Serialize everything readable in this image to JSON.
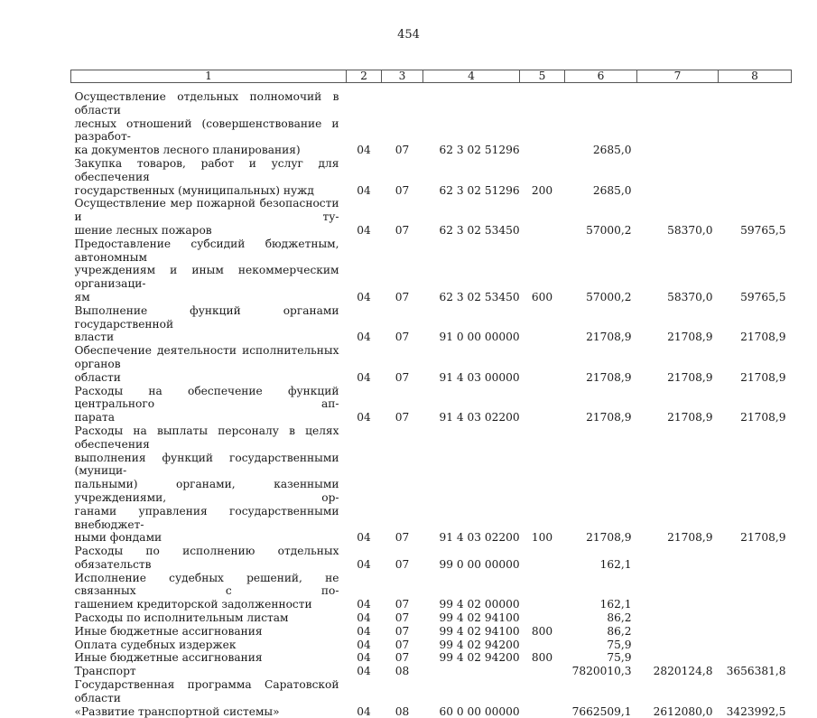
{
  "page_number": "454",
  "headers": [
    "1",
    "2",
    "3",
    "4",
    "5",
    "6",
    "7",
    "8"
  ],
  "rows": [
    {
      "lines": [
        "Осуществление отдельных полномочий в области",
        "лесных отношений (совершенствование и разработ-",
        "ка документов лесного планирования)"
      ],
      "c2": "04",
      "c3": "07",
      "c4": "62 3 02 51296",
      "c5": "",
      "c6": "2685,0",
      "c7": "",
      "c8": ""
    },
    {
      "lines": [
        "Закупка товаров, работ и услуг для обеспечения",
        "государственных (муниципальных) нужд"
      ],
      "c2": "04",
      "c3": "07",
      "c4": "62 3 02 51296",
      "c5": "200",
      "c6": "2685,0",
      "c7": "",
      "c8": ""
    },
    {
      "lines": [
        "Осуществление мер пожарной безопасности и ту-",
        "шение лесных пожаров"
      ],
      "c2": "04",
      "c3": "07",
      "c4": "62 3 02 53450",
      "c5": "",
      "c6": "57000,2",
      "c7": "58370,0",
      "c8": "59765,5"
    },
    {
      "lines": [
        "Предоставление субсидий бюджетным, автономным",
        "учреждениям и иным некоммерческим организаци-",
        "ям"
      ],
      "c2": "04",
      "c3": "07",
      "c4": "62 3 02 53450",
      "c5": "600",
      "c6": "57000,2",
      "c7": "58370,0",
      "c8": "59765,5"
    },
    {
      "lines": [
        "Выполнение функций органами государственной",
        "власти"
      ],
      "c2": "04",
      "c3": "07",
      "c4": "91 0 00 00000",
      "c5": "",
      "c6": "21708,9",
      "c7": "21708,9",
      "c8": "21708,9"
    },
    {
      "lines": [
        "Обеспечение деятельности исполнительных органов",
        "области"
      ],
      "c2": "04",
      "c3": "07",
      "c4": "91 4 03 00000",
      "c5": "",
      "c6": "21708,9",
      "c7": "21708,9",
      "c8": "21708,9"
    },
    {
      "lines": [
        "Расходы на обеспечение функций центрального ап-",
        "парата"
      ],
      "c2": "04",
      "c3": "07",
      "c4": "91 4 03 02200",
      "c5": "",
      "c6": "21708,9",
      "c7": "21708,9",
      "c8": "21708,9"
    },
    {
      "lines": [
        "Расходы на выплаты персоналу в целях обеспечения",
        "выполнения функций государственными (муници-",
        "пальными) органами, казенными учреждениями, ор-",
        "ганами управления государственными внебюджет-",
        "ными фондами"
      ],
      "c2": "04",
      "c3": "07",
      "c4": "91 4 03 02200",
      "c5": "100",
      "c6": "21708,9",
      "c7": "21708,9",
      "c8": "21708,9"
    },
    {
      "lines": [
        "Расходы по исполнению отдельных обязательств"
      ],
      "c2": "04",
      "c3": "07",
      "c4": "99 0 00 00000",
      "c5": "",
      "c6": "162,1",
      "c7": "",
      "c8": ""
    },
    {
      "lines": [
        "Исполнение судебных решений, не связанных с по-",
        "гашением кредиторской задолженности"
      ],
      "c2": "04",
      "c3": "07",
      "c4": "99 4 02 00000",
      "c5": "",
      "c6": "162,1",
      "c7": "",
      "c8": ""
    },
    {
      "lines": [
        "Расходы по исполнительным листам"
      ],
      "c2": "04",
      "c3": "07",
      "c4": "99 4 02 94100",
      "c5": "",
      "c6": "86,2",
      "c7": "",
      "c8": ""
    },
    {
      "lines": [
        "Иные бюджетные ассигнования"
      ],
      "c2": "04",
      "c3": "07",
      "c4": "99 4 02 94100",
      "c5": "800",
      "c6": "86,2",
      "c7": "",
      "c8": ""
    },
    {
      "lines": [
        "Оплата судебных издержек"
      ],
      "c2": "04",
      "c3": "07",
      "c4": "99 4 02 94200",
      "c5": "",
      "c6": "75,9",
      "c7": "",
      "c8": ""
    },
    {
      "lines": [
        "Иные бюджетные ассигнования"
      ],
      "c2": "04",
      "c3": "07",
      "c4": "99 4 02 94200",
      "c5": "800",
      "c6": "75,9",
      "c7": "",
      "c8": ""
    },
    {
      "lines": [
        "Транспорт"
      ],
      "c2": "04",
      "c3": "08",
      "c4": "",
      "c5": "",
      "c6": "7820010,3",
      "c7": "2820124,8",
      "c8": "3656381,8"
    },
    {
      "lines": [
        "Государственная программа Саратовской области",
        "«Развитие транспортной системы»"
      ],
      "c2": "04",
      "c3": "08",
      "c4": "60 0 00 00000",
      "c5": "",
      "c6": "7662509,1",
      "c7": "2612080,0",
      "c8": "3423992,5"
    }
  ]
}
